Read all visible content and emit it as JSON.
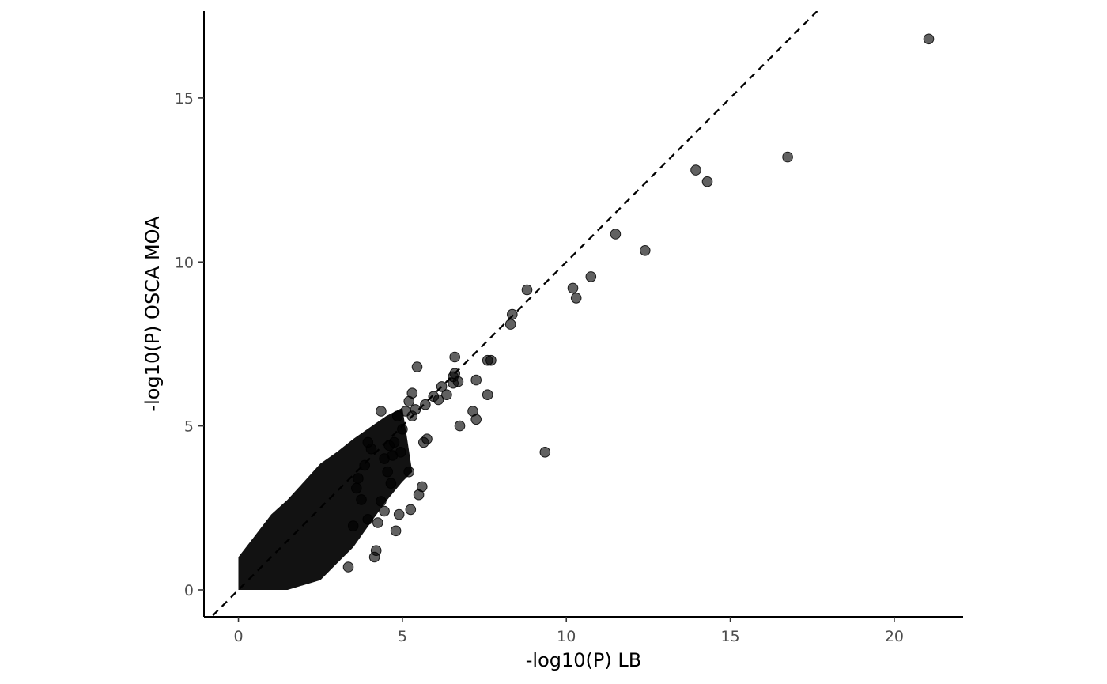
{
  "chart_data": {
    "type": "scatter",
    "title": "",
    "xlabel": "-log10(P) LB",
    "ylabel": "-log10(P) OSCA MOA",
    "xlim": [
      -1.05,
      22.1
    ],
    "ylim": [
      -0.82,
      17.65
    ],
    "xticks": [
      0,
      5,
      10,
      15,
      20
    ],
    "yticks": [
      0,
      5,
      10,
      15
    ],
    "grid": false,
    "legend": "none",
    "point_color": "#000000",
    "point_opacity": 0.62,
    "reference_line": {
      "type": "identity",
      "slope": 1,
      "intercept": 0,
      "style": "dashed",
      "color": "#000000"
    },
    "series": [
      {
        "x": [
          21.05,
          16.75,
          14.3,
          13.95,
          12.4,
          11.5,
          10.75,
          10.3,
          10.2,
          9.35,
          8.8,
          8.35,
          8.3,
          7.7,
          7.6,
          7.6,
          7.25,
          7.25,
          7.15,
          6.7,
          6.75,
          6.6,
          6.6,
          6.55,
          6.55,
          6.35,
          6.2,
          6.1,
          5.95,
          5.75,
          5.65,
          5.7,
          5.6,
          5.5,
          5.45,
          5.4,
          5.3,
          5.3,
          5.2,
          5.25,
          5.1,
          5.0,
          4.95,
          4.85,
          4.75,
          4.7,
          4.6,
          4.55,
          4.45,
          4.35,
          4.25,
          4.2,
          4.15,
          4.05,
          3.95,
          3.85,
          3.75,
          3.65,
          3.5,
          3.35,
          3.6,
          4.45,
          4.9,
          5.2,
          4.8,
          4.65,
          3.95,
          4.35
        ],
        "y": [
          16.8,
          13.2,
          12.45,
          12.8,
          10.35,
          10.85,
          9.55,
          8.9,
          9.2,
          4.2,
          9.15,
          8.4,
          8.1,
          7.0,
          7.0,
          5.95,
          6.4,
          5.2,
          5.45,
          6.35,
          5.0,
          7.1,
          6.6,
          6.3,
          6.5,
          5.95,
          6.2,
          5.8,
          5.9,
          4.6,
          4.5,
          5.65,
          3.15,
          2.9,
          6.8,
          5.5,
          6.0,
          5.3,
          5.75,
          2.45,
          5.45,
          4.9,
          4.2,
          5.3,
          4.5,
          4.1,
          4.4,
          3.6,
          2.4,
          5.45,
          2.05,
          1.2,
          1.0,
          4.3,
          2.15,
          3.8,
          2.75,
          3.4,
          1.95,
          0.7,
          3.1,
          4.0,
          2.3,
          3.6,
          1.8,
          3.25,
          4.5,
          2.7
        ]
      }
    ],
    "bulk_cluster": {
      "description_of_density": "dense overplotted cloud of many thousands of points along the diagonal",
      "upper_envelope": [
        [
          0,
          1.0
        ],
        [
          0.5,
          1.65
        ],
        [
          1.0,
          2.3
        ],
        [
          1.5,
          2.75
        ],
        [
          2.0,
          3.3
        ],
        [
          2.5,
          3.85
        ],
        [
          3.0,
          4.2
        ],
        [
          3.5,
          4.6
        ],
        [
          4.0,
          4.95
        ],
        [
          4.5,
          5.3
        ],
        [
          5.0,
          5.55
        ]
      ],
      "lower_envelope": [
        [
          0,
          0.0
        ],
        [
          1.5,
          0.0
        ],
        [
          2.5,
          0.3
        ],
        [
          3.0,
          0.8
        ],
        [
          3.5,
          1.3
        ],
        [
          4.0,
          2.0
        ],
        [
          4.5,
          2.7
        ],
        [
          5.0,
          3.3
        ],
        [
          5.3,
          3.6
        ]
      ]
    }
  }
}
